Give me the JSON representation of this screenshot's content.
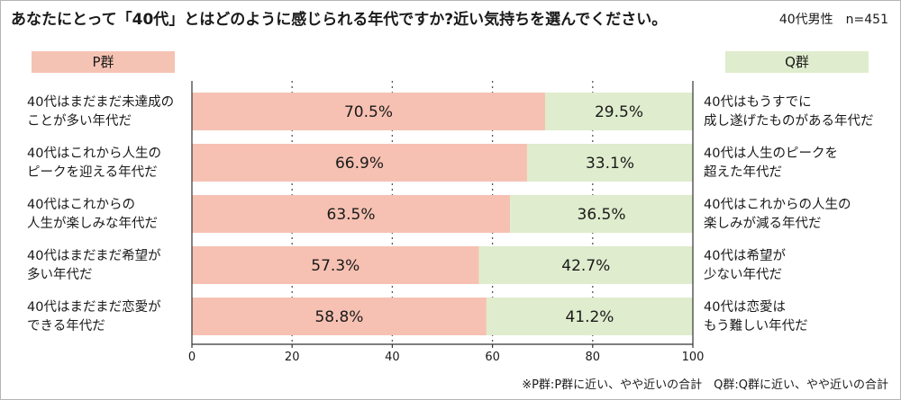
{
  "title": "あなたにとって「40代」とはどのように感じられる年代ですか?近い気持ちを選んでください。",
  "sample_label": "40代男性　n=451",
  "legend": {
    "p_group": "P群",
    "q_group": "Q群"
  },
  "footnote": "※P群:P群に近い、やや近いの合計　Q群:Q群に近い、やや近いの合計",
  "colors": {
    "p_bar": "#f6c1b2",
    "q_bar": "#dfeccd",
    "p_tag": "#f5c3b4",
    "q_tag": "#dfeccd"
  },
  "chart_data": {
    "type": "bar",
    "orientation": "horizontal-stacked",
    "xlim": [
      0,
      100
    ],
    "xticks": [
      0,
      20,
      40,
      60,
      80,
      100
    ],
    "grid": "dotted vertical",
    "rows": [
      {
        "p_label": [
          "40代はまだまだ未達成の",
          "ことが多い年代だ"
        ],
        "q_label": [
          "40代はもうすでに",
          "成し遂げたものがある年代だ"
        ],
        "p_value": 70.5,
        "q_value": 29.5,
        "p_text": "70.5%",
        "q_text": "29.5%"
      },
      {
        "p_label": [
          "40代はこれから人生の",
          "ピークを迎える年代だ"
        ],
        "q_label": [
          "40代は人生のピークを",
          "超えた年代だ"
        ],
        "p_value": 66.9,
        "q_value": 33.1,
        "p_text": "66.9%",
        "q_text": "33.1%"
      },
      {
        "p_label": [
          "40代はこれからの",
          "人生が楽しみな年代だ"
        ],
        "q_label": [
          "40代はこれからの人生の",
          "楽しみが減る年代だ"
        ],
        "p_value": 63.5,
        "q_value": 36.5,
        "p_text": "63.5%",
        "q_text": "36.5%"
      },
      {
        "p_label": [
          "40代はまだまだ希望が",
          "多い年代だ"
        ],
        "q_label": [
          "40代は希望が",
          "少ない年代だ"
        ],
        "p_value": 57.3,
        "q_value": 42.7,
        "p_text": "57.3%",
        "q_text": "42.7%"
      },
      {
        "p_label": [
          "40代はまだまだ恋愛が",
          "できる年代だ"
        ],
        "q_label": [
          "40代は恋愛は",
          "もう難しい年代だ"
        ],
        "p_value": 58.8,
        "q_value": 41.2,
        "p_text": "58.8%",
        "q_text": "41.2%"
      }
    ]
  }
}
